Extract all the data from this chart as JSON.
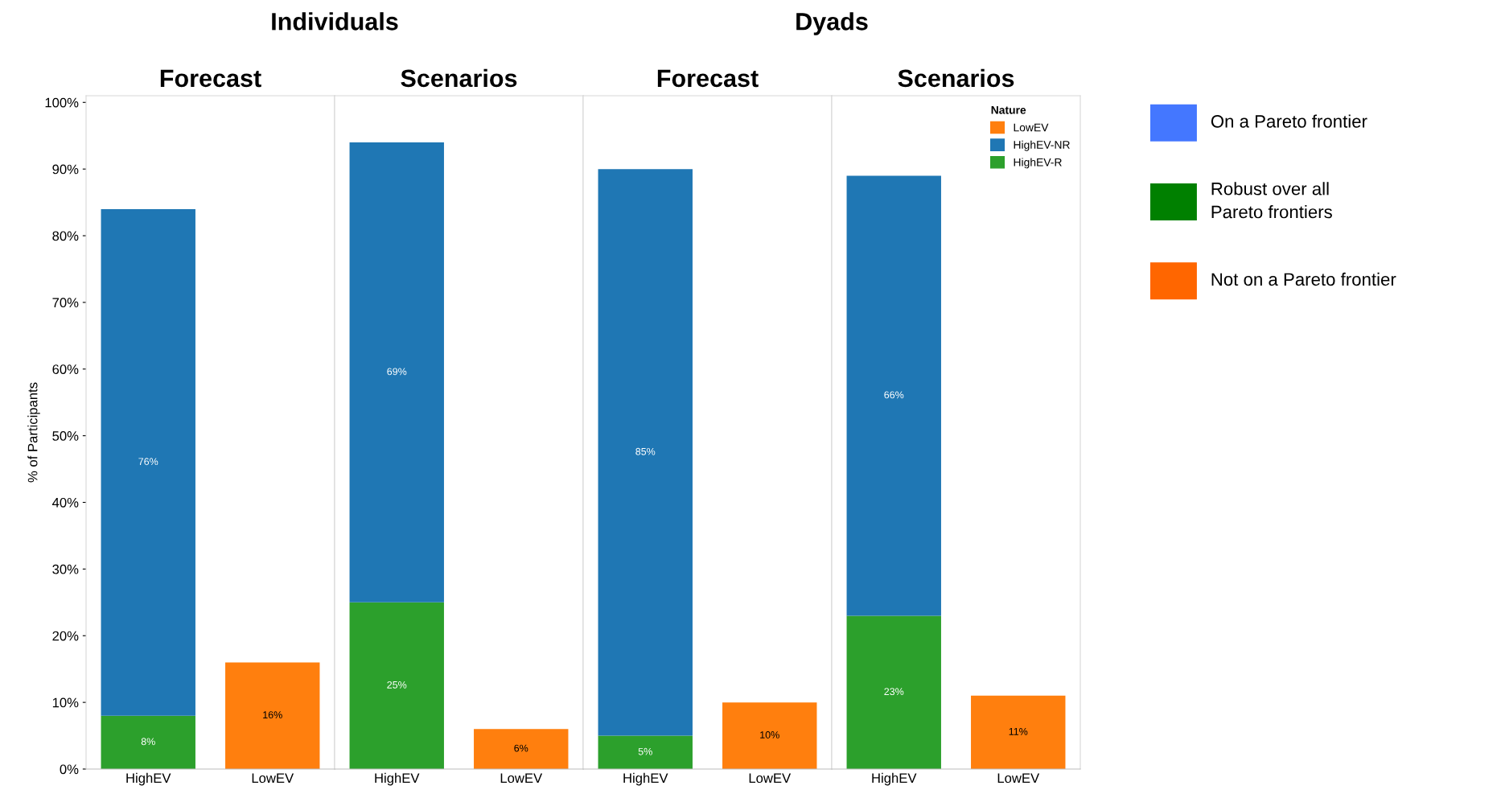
{
  "chart_data": [
    {
      "type": "bar",
      "title": "Forecast",
      "annotations": [
        "Individuals"
      ],
      "ylabel": "% of Participants",
      "categories": [
        "HighEV",
        "LowEV"
      ],
      "stacked": true,
      "ylim": [
        0,
        101
      ],
      "yticks": [
        {
          "value": 0,
          "label": "0%"
        },
        {
          "value": 10,
          "label": "10%"
        },
        {
          "value": 20,
          "label": "20%"
        },
        {
          "value": 30,
          "label": "30%"
        },
        {
          "value": 40,
          "label": "40%"
        },
        {
          "value": 50,
          "label": "50%"
        },
        {
          "value": 60,
          "label": "60%"
        },
        {
          "value": 70,
          "label": "70%"
        },
        {
          "value": 80,
          "label": "80%"
        },
        {
          "value": 90,
          "label": "90%"
        },
        {
          "value": 100,
          "label": "100%"
        }
      ],
      "grid": false,
      "series": [
        {
          "color": "#2ca02c",
          "values": [
            8,
            null
          ],
          "value_labels": [
            "8%",
            null
          ]
        },
        {
          "color": "#1f77b4",
          "values": [
            76,
            null
          ],
          "value_labels": [
            "76%",
            null
          ]
        },
        {
          "color": "#ff7f0e",
          "values": [
            null,
            16
          ],
          "value_labels": [
            null,
            "16%"
          ]
        }
      ]
    },
    {
      "type": "bar",
      "title": "Scenarios",
      "categories": [
        "HighEV",
        "LowEV"
      ],
      "stacked": true,
      "ylim": [
        0,
        101
      ],
      "tick_labels": "x",
      "grid": false,
      "series": [
        {
          "color": "#2ca02c",
          "values": [
            25,
            null
          ],
          "value_labels": [
            "25%",
            null
          ]
        },
        {
          "color": "#1f77b4",
          "values": [
            69,
            null
          ],
          "value_labels": [
            "69%",
            null
          ]
        },
        {
          "color": "#ff7f0e",
          "values": [
            null,
            6
          ],
          "value_labels": [
            null,
            "6%"
          ]
        }
      ]
    },
    {
      "type": "bar",
      "title": "Forecast",
      "annotations": [
        "Dyads"
      ],
      "categories": [
        "HighEV",
        "LowEV"
      ],
      "stacked": true,
      "ylim": [
        0,
        101
      ],
      "tick_labels": "x",
      "grid": false,
      "series": [
        {
          "color": "#2ca02c",
          "values": [
            5,
            null
          ],
          "value_labels": [
            "5%",
            null
          ]
        },
        {
          "color": "#1f77b4",
          "values": [
            85,
            null
          ],
          "value_labels": [
            "85%",
            null
          ]
        },
        {
          "color": "#ff7f0e",
          "values": [
            null,
            10
          ],
          "value_labels": [
            null,
            "10%"
          ]
        }
      ]
    },
    {
      "type": "bar",
      "title": "Scenarios",
      "categories": [
        "HighEV",
        "LowEV"
      ],
      "stacked": true,
      "ylim": [
        0,
        101
      ],
      "tick_labels": "x",
      "grid": false,
      "legend": "top right",
      "legend_title": "Nature",
      "series": [
        {
          "name": "HighEV-R",
          "color": "#2ca02c",
          "values": [
            23,
            null
          ],
          "value_labels": [
            "23%",
            null
          ]
        },
        {
          "name": "HighEV-NR",
          "color": "#1f77b4",
          "values": [
            66,
            null
          ],
          "value_labels": [
            "66%",
            null
          ]
        },
        {
          "name": "LowEV",
          "color": "#ff7f0e",
          "values": [
            null,
            11
          ],
          "value_labels": [
            null,
            "11%"
          ]
        }
      ]
    },
    {
      "type": "other",
      "series": [
        {
          "name": "On a Pareto frontier",
          "color": "#4477ff"
        },
        {
          "name": "Robust over all\nPareto frontiers",
          "color": "#008000"
        },
        {
          "name": "Not on a Pareto frontier",
          "color": "#ff6600"
        }
      ]
    }
  ]
}
